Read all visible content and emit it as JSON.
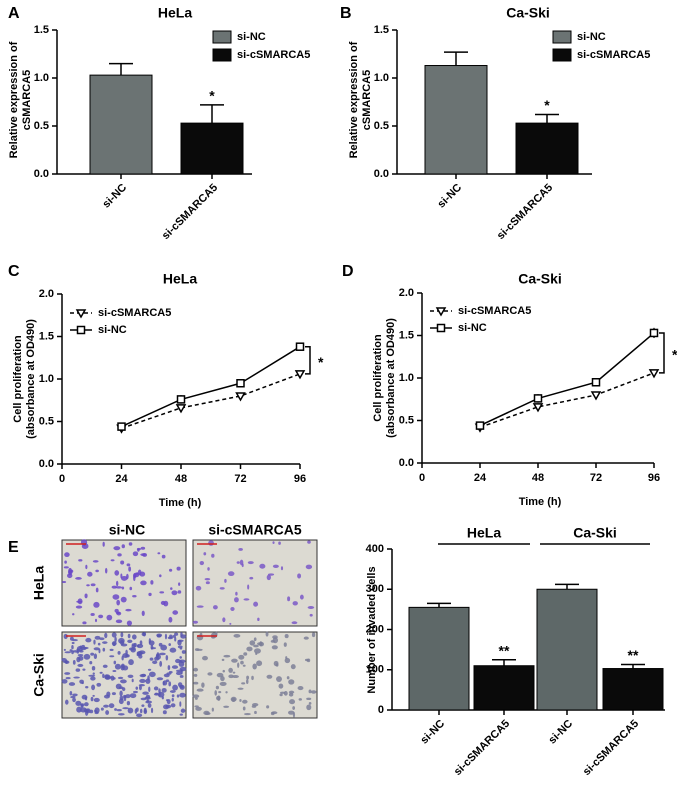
{
  "chart_data": [
    {
      "type": "bar",
      "panel_label": "A",
      "title": "HeLa",
      "ylabel": [
        "Relative expression of",
        "cSMARCA5"
      ],
      "categories": [
        "si-NC",
        "si-cSMARCA5"
      ],
      "values": [
        1.03,
        0.53
      ],
      "errors": [
        0.12,
        0.19
      ],
      "colors": [
        "#6b7373",
        "#0a0a0a"
      ],
      "legend": true,
      "significance": [
        null,
        "*"
      ],
      "ylim": [
        0,
        1.5
      ],
      "yticks": [
        {
          "value": 0,
          "label": "0.0"
        },
        0.5,
        {
          "value": 1,
          "label": "1.0"
        },
        1.5
      ]
    },
    {
      "type": "bar",
      "panel_label": "B",
      "title": "Ca-Ski",
      "ylabel": [
        "Relative expression of",
        "cSMARCA5"
      ],
      "categories": [
        "si-NC",
        "si-cSMARCA5"
      ],
      "values": [
        1.13,
        0.53
      ],
      "errors": [
        0.14,
        0.09
      ],
      "colors": [
        "#6b7373",
        "#0a0a0a"
      ],
      "legend": true,
      "significance": [
        null,
        "*"
      ],
      "ylim": [
        0,
        1.5
      ],
      "yticks": [
        {
          "value": 0,
          "label": "0.0"
        },
        0.5,
        {
          "value": 1,
          "label": "1.0"
        },
        1.5
      ]
    },
    {
      "type": "line",
      "panel_label": "C",
      "title": "HeLa",
      "ylabel": [
        "Cell proliferation",
        "(absorbance at OD490)"
      ],
      "xlabel": "Time (h)",
      "x": [
        24,
        48,
        72,
        96
      ],
      "series": [
        {
          "name": "si-cSMARCA5",
          "color": "#000000",
          "marker": "triangle-down",
          "line_style": "dashed",
          "values": [
            0.42,
            0.66,
            0.8,
            1.06
          ],
          "errors": [
            0.03,
            0.03,
            0.03,
            0.04
          ]
        },
        {
          "name": "si-NC",
          "color": "#000000",
          "marker": "square",
          "line_style": "solid",
          "values": [
            0.44,
            0.76,
            0.95,
            1.38
          ],
          "errors": [
            0.04,
            0.05,
            0.03,
            0.04
          ]
        }
      ],
      "significance": "*",
      "xlim": [
        0,
        96
      ],
      "xticks": [
        0,
        24,
        48,
        72,
        96
      ],
      "ylim": [
        0,
        2
      ],
      "yticks": [
        {
          "value": 0,
          "label": "0.0"
        },
        0.5,
        {
          "value": 1,
          "label": "1.0"
        },
        1.5,
        {
          "value": 2,
          "label": "2.0"
        }
      ]
    },
    {
      "type": "line",
      "panel_label": "D",
      "title": "Ca-Ski",
      "ylabel": [
        "Cell proliferation",
        "(absorbance at OD490)"
      ],
      "xlabel": "Time (h)",
      "x": [
        24,
        48,
        72,
        96
      ],
      "series": [
        {
          "name": "si-cSMARCA5",
          "color": "#000000",
          "marker": "triangle-down",
          "line_style": "dashed",
          "values": [
            0.42,
            0.66,
            0.8,
            1.06
          ],
          "errors": [
            0.03,
            0.03,
            0.03,
            0.04
          ]
        },
        {
          "name": "si-NC",
          "color": "#000000",
          "marker": "square",
          "line_style": "solid",
          "values": [
            0.44,
            0.76,
            0.95,
            1.53
          ],
          "errors": [
            0.04,
            0.05,
            0.03,
            0.06
          ]
        }
      ],
      "significance": "*",
      "xlim": [
        0,
        96
      ],
      "xticks": [
        0,
        24,
        48,
        72,
        96
      ],
      "ylim": [
        0,
        2
      ],
      "yticks": [
        {
          "value": 0,
          "label": "0.0"
        },
        0.5,
        {
          "value": 1,
          "label": "1.0"
        },
        1.5,
        {
          "value": 2,
          "label": "2.0"
        }
      ]
    },
    {
      "type": "bar",
      "panel_label": "E",
      "image_columns": [
        "si-NC",
        "si-cSMARCA5"
      ],
      "image_rows": [
        "HeLa",
        "Ca-Ski"
      ],
      "ylabel": [
        "Number of invaded cells"
      ],
      "groups": [
        "HeLa",
        "Ca-Ski"
      ],
      "categories": [
        "si-NC",
        "si-cSMARCA5",
        "si-NC",
        "si-cSMARCA5"
      ],
      "values": [
        255,
        110,
        300,
        103
      ],
      "errors": [
        10,
        15,
        12,
        10
      ],
      "colors": [
        "#5e6868",
        "#0a0a0a",
        "#5e6868",
        "#0a0a0a"
      ],
      "legend": false,
      "significance": [
        null,
        "**",
        null,
        "**"
      ],
      "ylim": [
        0,
        400
      ],
      "yticks": [
        0,
        100,
        200,
        300,
        400
      ]
    }
  ]
}
